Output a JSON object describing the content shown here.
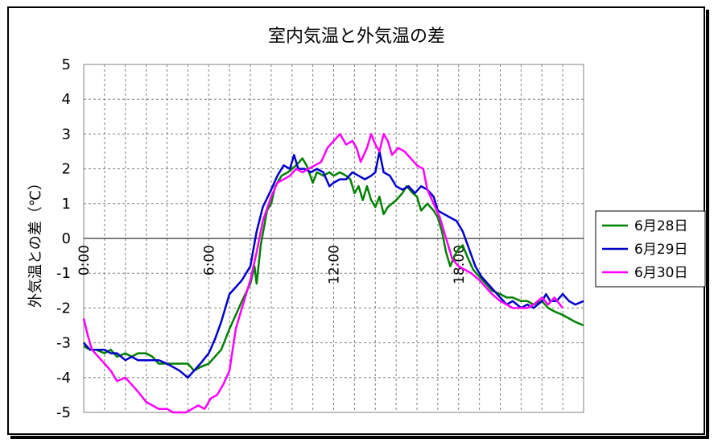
{
  "chart_data": {
    "type": "line",
    "title": "室内気温と外気温の差",
    "ylabel": "外気温との差（℃）",
    "xlabel": "",
    "ylim": [
      -5,
      5
    ],
    "yticks": [
      "5",
      "4",
      "3",
      "2",
      "1",
      "0",
      "-1",
      "-2",
      "-3",
      "-4",
      "-5"
    ],
    "xlim": [
      0,
      24
    ],
    "xticks": [
      {
        "value": 0,
        "label": "0:00"
      },
      {
        "value": 6,
        "label": "6:00"
      },
      {
        "value": 12,
        "label": "12:00"
      },
      {
        "value": 18,
        "label": "18:00"
      }
    ],
    "grid": true,
    "legend_position": "right",
    "series": [
      {
        "name": "6月28日",
        "color": "#008000",
        "points": [
          [
            0,
            -3.1
          ],
          [
            0.3,
            -3.2
          ],
          [
            0.6,
            -3.2
          ],
          [
            1,
            -3.3
          ],
          [
            1.3,
            -3.2
          ],
          [
            1.6,
            -3.4
          ],
          [
            2,
            -3.3
          ],
          [
            2.3,
            -3.4
          ],
          [
            2.6,
            -3.3
          ],
          [
            3,
            -3.3
          ],
          [
            3.3,
            -3.4
          ],
          [
            3.6,
            -3.6
          ],
          [
            4,
            -3.6
          ],
          [
            4.3,
            -3.6
          ],
          [
            4.6,
            -3.6
          ],
          [
            5,
            -3.6
          ],
          [
            5.3,
            -3.8
          ],
          [
            5.6,
            -3.7
          ],
          [
            6,
            -3.6
          ],
          [
            6.3,
            -3.4
          ],
          [
            6.6,
            -3.2
          ],
          [
            7,
            -2.6
          ],
          [
            7.3,
            -2.2
          ],
          [
            7.6,
            -1.8
          ],
          [
            8,
            -1.3
          ],
          [
            8.2,
            -0.8
          ],
          [
            8.3,
            -1.3
          ],
          [
            8.5,
            -0.2
          ],
          [
            8.8,
            0.8
          ],
          [
            9,
            1.0
          ],
          [
            9.2,
            1.5
          ],
          [
            9.5,
            1.8
          ],
          [
            9.8,
            1.9
          ],
          [
            10,
            2.0
          ],
          [
            10.2,
            2.1
          ],
          [
            10.5,
            2.3
          ],
          [
            10.7,
            2.1
          ],
          [
            11,
            1.6
          ],
          [
            11.2,
            1.9
          ],
          [
            11.5,
            1.8
          ],
          [
            11.8,
            1.9
          ],
          [
            12,
            1.8
          ],
          [
            12.3,
            1.9
          ],
          [
            12.6,
            1.8
          ],
          [
            12.8,
            1.7
          ],
          [
            13,
            1.3
          ],
          [
            13.2,
            1.5
          ],
          [
            13.4,
            1.1
          ],
          [
            13.6,
            1.5
          ],
          [
            13.8,
            1.1
          ],
          [
            14,
            0.9
          ],
          [
            14.2,
            1.2
          ],
          [
            14.4,
            0.7
          ],
          [
            14.6,
            0.9
          ],
          [
            14.8,
            1.0
          ],
          [
            15,
            1.1
          ],
          [
            15.3,
            1.3
          ],
          [
            15.5,
            1.5
          ],
          [
            15.8,
            1.3
          ],
          [
            16,
            1.2
          ],
          [
            16.2,
            0.8
          ],
          [
            16.5,
            1.0
          ],
          [
            16.8,
            0.8
          ],
          [
            17,
            0.6
          ],
          [
            17.2,
            0.2
          ],
          [
            17.4,
            -0.4
          ],
          [
            17.6,
            -0.8
          ],
          [
            17.8,
            -0.5
          ],
          [
            18,
            -0.3
          ],
          [
            18.2,
            -0.2
          ],
          [
            18.4,
            -0.5
          ],
          [
            18.7,
            -0.9
          ],
          [
            19,
            -1.1
          ],
          [
            19.3,
            -1.3
          ],
          [
            19.6,
            -1.5
          ],
          [
            20,
            -1.6
          ],
          [
            20.3,
            -1.7
          ],
          [
            20.6,
            -1.7
          ],
          [
            21,
            -1.8
          ],
          [
            21.3,
            -1.8
          ],
          [
            21.6,
            -1.9
          ],
          [
            22,
            -1.8
          ],
          [
            22.3,
            -2.0
          ],
          [
            22.6,
            -2.1
          ],
          [
            23,
            -2.2
          ],
          [
            23.3,
            -2.3
          ],
          [
            23.6,
            -2.4
          ],
          [
            24,
            -2.5
          ]
        ]
      },
      {
        "name": "6月29日",
        "color": "#0000CC",
        "points": [
          [
            0,
            -3.0
          ],
          [
            0.3,
            -3.2
          ],
          [
            0.6,
            -3.2
          ],
          [
            1,
            -3.2
          ],
          [
            1.3,
            -3.3
          ],
          [
            1.6,
            -3.3
          ],
          [
            2,
            -3.5
          ],
          [
            2.3,
            -3.4
          ],
          [
            2.6,
            -3.5
          ],
          [
            3,
            -3.5
          ],
          [
            3.3,
            -3.5
          ],
          [
            3.6,
            -3.5
          ],
          [
            4,
            -3.6
          ],
          [
            4.3,
            -3.7
          ],
          [
            4.6,
            -3.8
          ],
          [
            5,
            -4.0
          ],
          [
            5.3,
            -3.8
          ],
          [
            5.6,
            -3.6
          ],
          [
            6,
            -3.3
          ],
          [
            6.3,
            -2.9
          ],
          [
            6.6,
            -2.4
          ],
          [
            7,
            -1.6
          ],
          [
            7.3,
            -1.4
          ],
          [
            7.6,
            -1.2
          ],
          [
            8,
            -0.8
          ],
          [
            8.3,
            0.2
          ],
          [
            8.6,
            0.9
          ],
          [
            9,
            1.4
          ],
          [
            9.3,
            1.8
          ],
          [
            9.6,
            2.1
          ],
          [
            9.9,
            2.0
          ],
          [
            10.1,
            2.4
          ],
          [
            10.3,
            2.0
          ],
          [
            10.6,
            2.0
          ],
          [
            10.9,
            1.9
          ],
          [
            11.2,
            2.0
          ],
          [
            11.5,
            1.9
          ],
          [
            11.8,
            1.5
          ],
          [
            12,
            1.6
          ],
          [
            12.3,
            1.7
          ],
          [
            12.6,
            1.7
          ],
          [
            12.9,
            1.9
          ],
          [
            13.2,
            1.8
          ],
          [
            13.5,
            1.7
          ],
          [
            13.8,
            1.8
          ],
          [
            14,
            1.9
          ],
          [
            14.2,
            2.5
          ],
          [
            14.4,
            1.9
          ],
          [
            14.7,
            1.8
          ],
          [
            15,
            1.5
          ],
          [
            15.3,
            1.4
          ],
          [
            15.6,
            1.5
          ],
          [
            15.9,
            1.3
          ],
          [
            16.2,
            1.5
          ],
          [
            16.5,
            1.4
          ],
          [
            16.8,
            1.2
          ],
          [
            17,
            0.8
          ],
          [
            17.3,
            0.7
          ],
          [
            17.6,
            0.6
          ],
          [
            17.9,
            0.5
          ],
          [
            18.2,
            0.2
          ],
          [
            18.5,
            -0.3
          ],
          [
            18.8,
            -0.8
          ],
          [
            19.1,
            -1.1
          ],
          [
            19.4,
            -1.3
          ],
          [
            19.7,
            -1.5
          ],
          [
            20,
            -1.7
          ],
          [
            20.3,
            -1.9
          ],
          [
            20.6,
            -1.8
          ],
          [
            21,
            -2.0
          ],
          [
            21.3,
            -1.9
          ],
          [
            21.6,
            -2.0
          ],
          [
            22,
            -1.8
          ],
          [
            22.2,
            -1.6
          ],
          [
            22.4,
            -1.8
          ],
          [
            22.7,
            -1.8
          ],
          [
            23,
            -1.6
          ],
          [
            23.3,
            -1.8
          ],
          [
            23.6,
            -1.9
          ],
          [
            24,
            -1.8
          ]
        ]
      },
      {
        "name": "6月30日",
        "color": "#FF00FF",
        "points": [
          [
            0,
            -2.3
          ],
          [
            0.2,
            -2.8
          ],
          [
            0.4,
            -3.2
          ],
          [
            0.7,
            -3.4
          ],
          [
            1,
            -3.6
          ],
          [
            1.3,
            -3.8
          ],
          [
            1.6,
            -4.1
          ],
          [
            2,
            -4.0
          ],
          [
            2.3,
            -4.2
          ],
          [
            2.6,
            -4.4
          ],
          [
            3,
            -4.7
          ],
          [
            3.3,
            -4.8
          ],
          [
            3.6,
            -4.9
          ],
          [
            4,
            -4.9
          ],
          [
            4.3,
            -5.0
          ],
          [
            4.6,
            -5.0
          ],
          [
            4.9,
            -5.0
          ],
          [
            5.2,
            -4.9
          ],
          [
            5.5,
            -4.8
          ],
          [
            5.8,
            -4.9
          ],
          [
            6.1,
            -4.6
          ],
          [
            6.4,
            -4.5
          ],
          [
            6.7,
            -4.2
          ],
          [
            7,
            -3.8
          ],
          [
            7.3,
            -2.6
          ],
          [
            7.6,
            -2.0
          ],
          [
            8,
            -1.2
          ],
          [
            8.3,
            -0.4
          ],
          [
            8.6,
            0.5
          ],
          [
            9,
            1.2
          ],
          [
            9.3,
            1.6
          ],
          [
            9.6,
            1.7
          ],
          [
            9.9,
            1.8
          ],
          [
            10.2,
            2.0
          ],
          [
            10.5,
            1.9
          ],
          [
            10.8,
            2.0
          ],
          [
            11.1,
            2.1
          ],
          [
            11.4,
            2.2
          ],
          [
            11.7,
            2.6
          ],
          [
            12,
            2.8
          ],
          [
            12.3,
            3.0
          ],
          [
            12.6,
            2.7
          ],
          [
            12.9,
            2.8
          ],
          [
            13.1,
            2.6
          ],
          [
            13.3,
            2.2
          ],
          [
            13.6,
            2.6
          ],
          [
            13.8,
            3.0
          ],
          [
            14,
            2.7
          ],
          [
            14.2,
            2.5
          ],
          [
            14.4,
            3.0
          ],
          [
            14.6,
            2.8
          ],
          [
            14.8,
            2.4
          ],
          [
            15.1,
            2.6
          ],
          [
            15.4,
            2.5
          ],
          [
            15.7,
            2.3
          ],
          [
            16,
            2.1
          ],
          [
            16.3,
            2.0
          ],
          [
            16.5,
            1.4
          ],
          [
            16.8,
            1.0
          ],
          [
            17.1,
            0.6
          ],
          [
            17.4,
            0.0
          ],
          [
            17.7,
            -0.6
          ],
          [
            18,
            -0.8
          ],
          [
            18.3,
            -0.9
          ],
          [
            18.6,
            -1.0
          ],
          [
            19,
            -1.2
          ],
          [
            19.3,
            -1.4
          ],
          [
            19.6,
            -1.6
          ],
          [
            20,
            -1.8
          ],
          [
            20.3,
            -1.9
          ],
          [
            20.6,
            -2.0
          ],
          [
            21,
            -2.0
          ],
          [
            21.3,
            -2.0
          ],
          [
            21.6,
            -1.9
          ],
          [
            22,
            -1.7
          ],
          [
            22.3,
            -1.9
          ],
          [
            22.6,
            -1.7
          ],
          [
            23,
            -2.0
          ]
        ]
      }
    ]
  }
}
